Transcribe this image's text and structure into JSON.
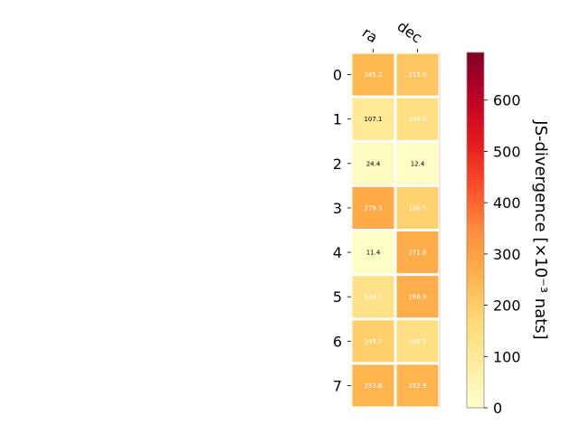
{
  "chart_data": {
    "type": "heatmap",
    "x_categories": [
      "ra",
      "dec"
    ],
    "y_categories": [
      "0",
      "1",
      "2",
      "3",
      "4",
      "5",
      "6",
      "7"
    ],
    "values": [
      [
        245.2,
        215.0
      ],
      [
        107.1,
        148.9
      ],
      [
        24.4,
        12.4
      ],
      [
        279.3,
        188.5
      ],
      [
        11.4,
        271.6
      ],
      [
        134.1,
        268.9
      ],
      [
        195.7,
        145.5
      ],
      [
        253.6,
        252.9
      ]
    ],
    "cell_labels": [
      [
        "245.2",
        "215.0"
      ],
      [
        "107.1",
        "148.9"
      ],
      [
        "24.4",
        "12.4"
      ],
      [
        "279.3",
        "188.5"
      ],
      [
        "11.4",
        "271.6"
      ],
      [
        "134.1",
        "268.9"
      ],
      [
        "195.7",
        "145.5"
      ],
      [
        "253.6",
        "252.9"
      ]
    ],
    "colorbar": {
      "label": "JS-divergence [×10⁻³ nats]",
      "range": [
        0,
        693
      ],
      "ticks": [
        0,
        100,
        200,
        300,
        400,
        500,
        600
      ],
      "tick_labels": [
        "0",
        "100",
        "200",
        "300",
        "400",
        "500",
        "600"
      ],
      "colormap": "YlOrRd"
    },
    "x_label_rotation": "tilted",
    "x_tick_position": "top",
    "grid": false
  },
  "colors": {
    "ylorrd_stops": [
      "#ffffcc",
      "#ffeda0",
      "#fed976",
      "#feb24c",
      "#fd8d3c",
      "#fc4e2a",
      "#e31a1c",
      "#bd0026",
      "#800026"
    ],
    "cell_border": "#ffffff",
    "label_light": "#ffffff",
    "label_dark": "#000000",
    "axis": "#000000",
    "colorbar_edge": "#8c8c8c"
  }
}
